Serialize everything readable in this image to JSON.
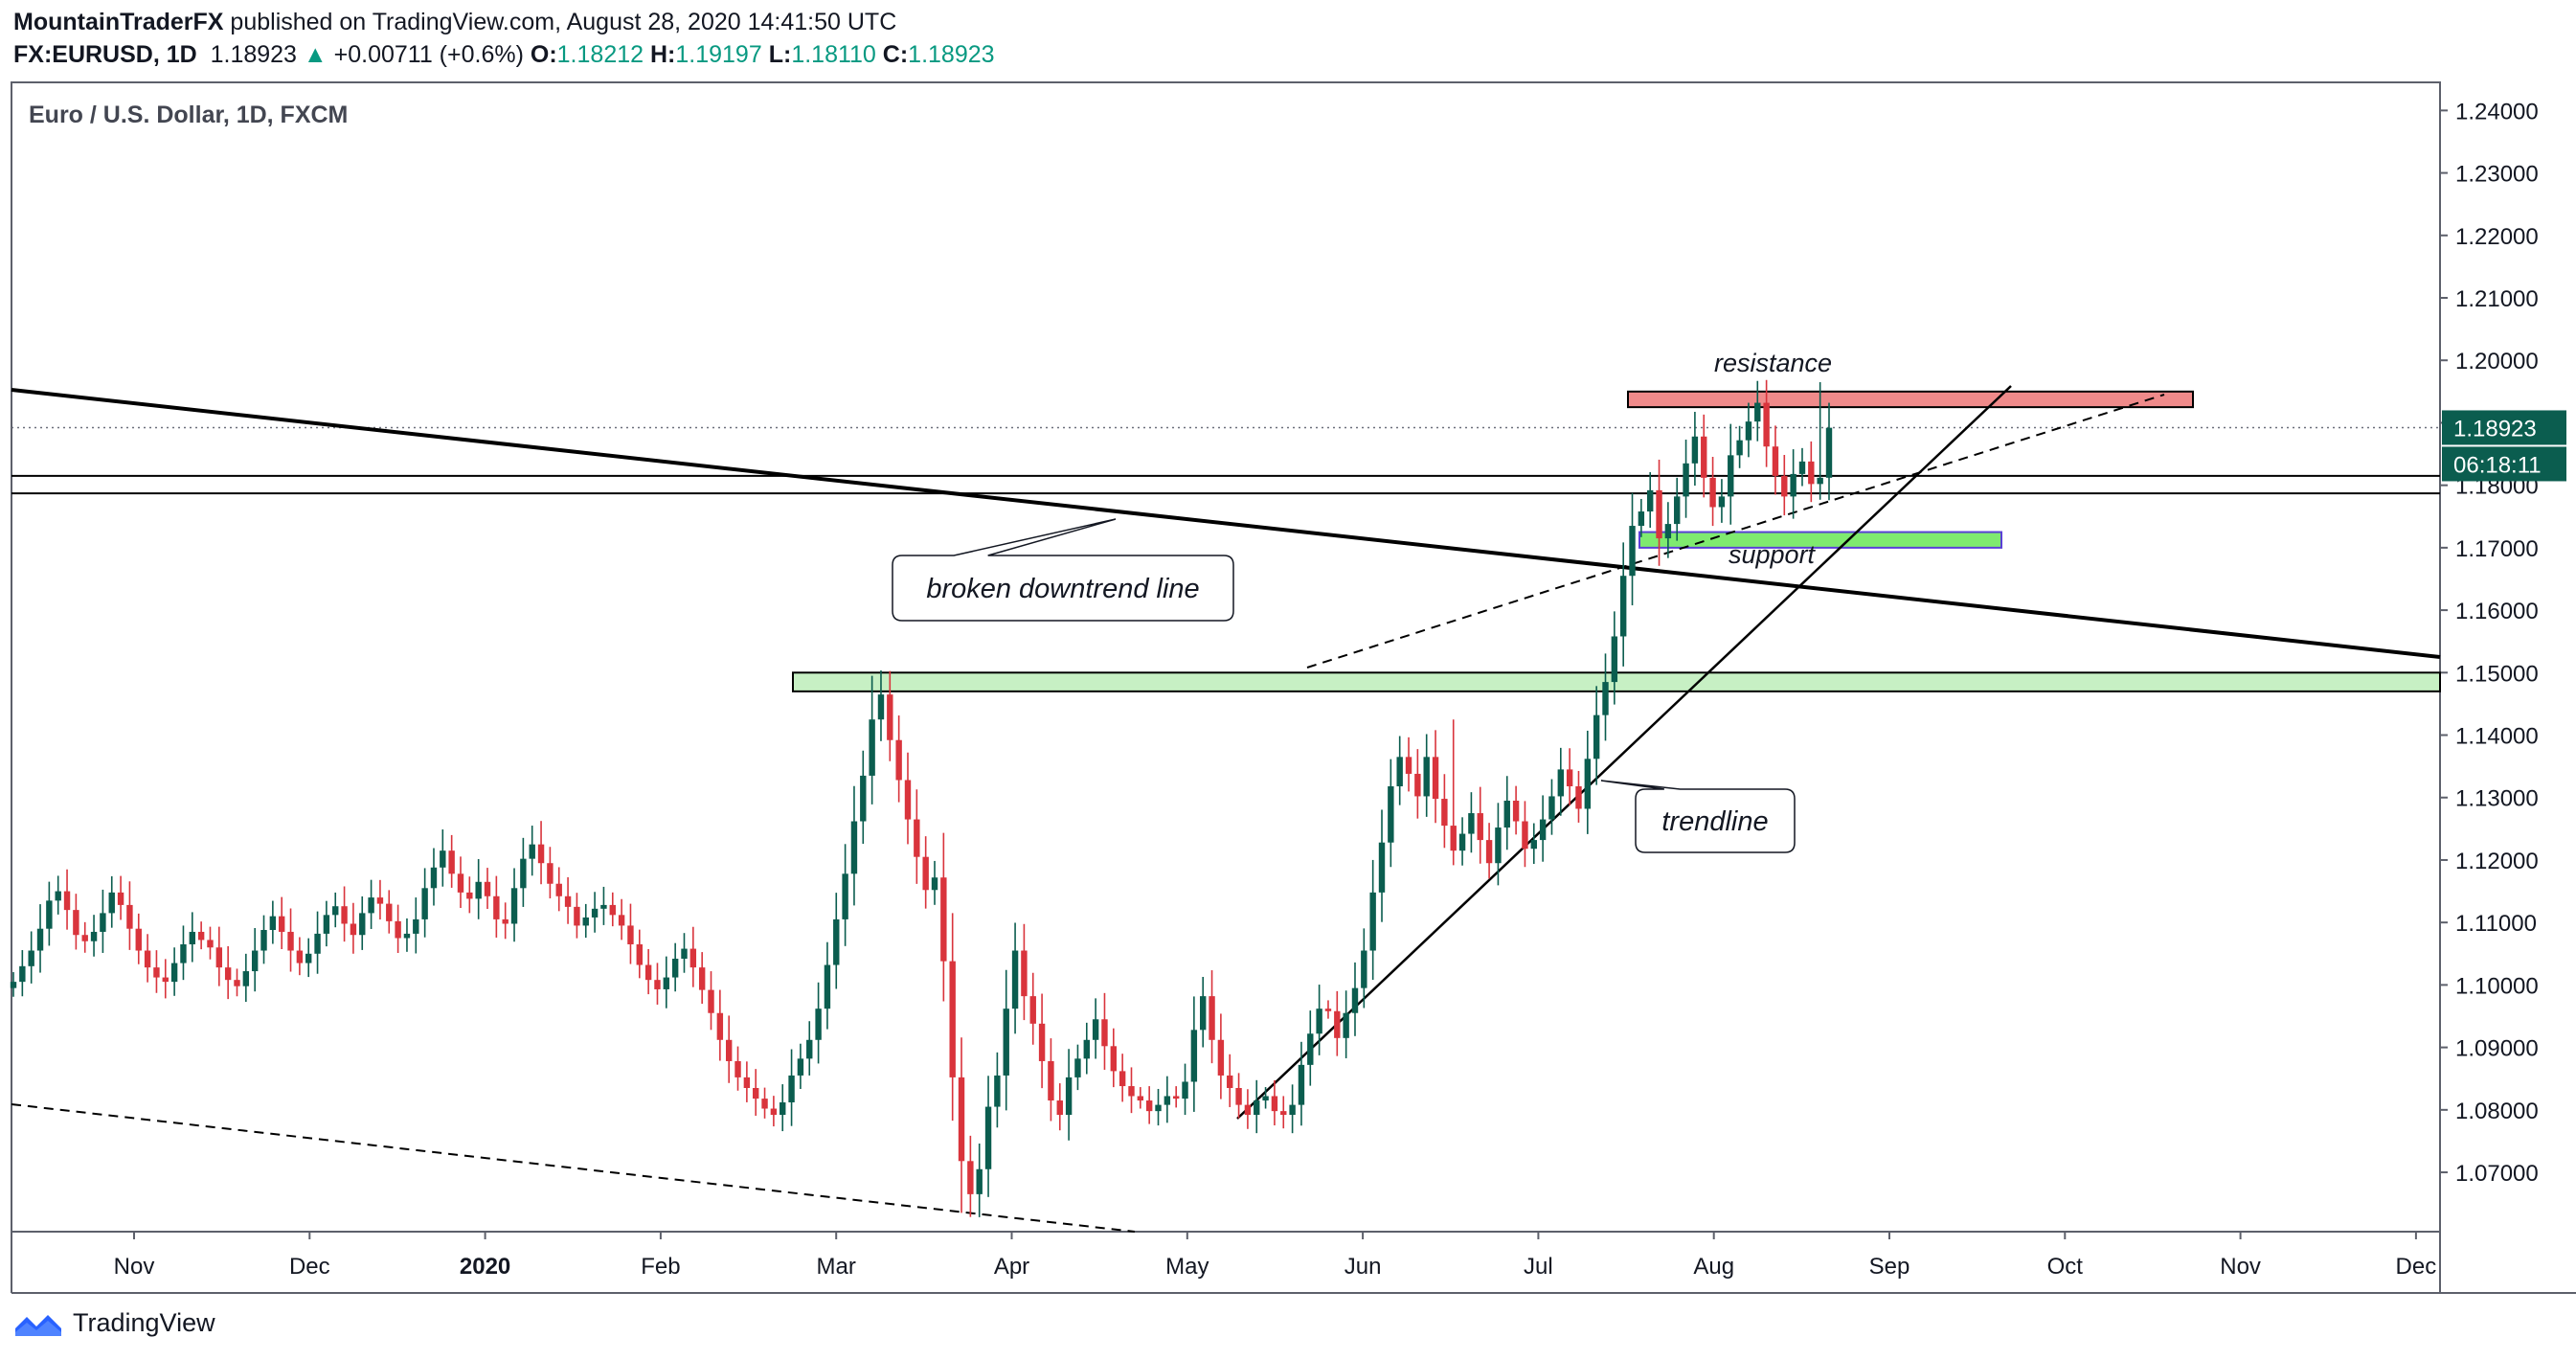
{
  "header": {
    "author": "MountainTraderFX",
    "published": "published on TradingView.com, August 28, 2020 14:41:50 UTC",
    "symbol": "FX:EURUSD, 1D",
    "last": "1.18923",
    "change": "+0.00711 (+0.6%)",
    "o_label": "O:",
    "o_value": "1.18212",
    "h_label": "H:",
    "h_value": "1.19197",
    "l_label": "L:",
    "l_value": "1.18110",
    "c_label": "C:",
    "c_value": "1.18923"
  },
  "colors": {
    "up": "#0b5d4f",
    "down": "#d9343c",
    "resistance_fill": "#ef8a8a",
    "support_fill": "#7fea6f",
    "zone_fill": "#c7f0c4",
    "price_label_bg": "#0b5d4f"
  },
  "chart_data": {
    "type": "candlestick",
    "title": "Euro / U.S. Dollar, 1D, FXCM",
    "ylim": [
      1.0605,
      1.2445
    ],
    "y_ticks": [
      "1.24000",
      "1.23000",
      "1.22000",
      "1.21000",
      "1.20000",
      "1.19000",
      "1.18000",
      "1.17000",
      "1.16000",
      "1.15000",
      "1.14000",
      "1.13000",
      "1.12000",
      "1.11000",
      "1.10000",
      "1.09000",
      "1.08000",
      "1.07000"
    ],
    "x_ticks": [
      {
        "label": "Nov",
        "bold": false
      },
      {
        "label": "Dec",
        "bold": false
      },
      {
        "label": "2020",
        "bold": true
      },
      {
        "label": "Feb",
        "bold": false
      },
      {
        "label": "Mar",
        "bold": false
      },
      {
        "label": "Apr",
        "bold": false
      },
      {
        "label": "May",
        "bold": false
      },
      {
        "label": "Jun",
        "bold": false
      },
      {
        "label": "Jul",
        "bold": false
      },
      {
        "label": "Aug",
        "bold": false
      },
      {
        "label": "Sep",
        "bold": false
      },
      {
        "label": "Oct",
        "bold": false
      },
      {
        "label": "Nov",
        "bold": false
      },
      {
        "label": "Dec",
        "bold": false
      }
    ],
    "last_price": "1.18923",
    "countdown": "06:18:11",
    "closes": [
      1.1005,
      1.103,
      1.1055,
      1.109,
      1.1135,
      1.115,
      1.112,
      1.108,
      1.107,
      1.1085,
      1.1115,
      1.1148,
      1.1128,
      1.109,
      1.1055,
      1.1028,
      1.1012,
      1.1005,
      1.1035,
      1.1065,
      1.1085,
      1.1072,
      1.106,
      1.1028,
      1.1008,
      1.0998,
      1.1022,
      1.1055,
      1.1088,
      1.111,
      1.1085,
      1.1055,
      1.1035,
      1.105,
      1.1082,
      1.1112,
      1.1126,
      1.1098,
      1.108,
      1.1115,
      1.114,
      1.113,
      1.1102,
      1.1075,
      1.1082,
      1.1105,
      1.1155,
      1.1188,
      1.1215,
      1.1178,
      1.1148,
      1.1138,
      1.1165,
      1.1142,
      1.1105,
      1.1098,
      1.1155,
      1.1202,
      1.1225,
      1.1195,
      1.1162,
      1.1142,
      1.1125,
      1.1095,
      1.1108,
      1.1122,
      1.1128,
      1.1112,
      1.1095,
      1.1065,
      1.1032,
      1.1008,
      1.0993,
      1.1012,
      1.1042,
      1.1058,
      1.1028,
      1.0992,
      1.0955,
      1.0912,
      1.0878,
      1.0852,
      1.0835,
      1.0818,
      1.0802,
      1.0792,
      1.0812,
      1.0855,
      1.0882,
      1.0912,
      1.0962,
      1.1032,
      1.1105,
      1.1178,
      1.1262,
      1.1335,
      1.1425,
      1.1465,
      1.1392,
      1.1328,
      1.1265,
      1.1205,
      1.1152,
      1.1172,
      1.1038,
      1.0852,
      1.0718,
      1.0665,
      1.0705,
      1.0805,
      1.0855,
      1.0962,
      1.1055,
      1.0982,
      1.0938,
      1.0878,
      1.0815,
      1.0792,
      1.0852,
      1.0882,
      1.0912,
      1.0945,
      1.0902,
      1.0862,
      1.0838,
      1.0822,
      1.0815,
      1.0798,
      1.0808,
      1.0822,
      1.0818,
      1.0845,
      1.0928,
      1.0982,
      1.0912,
      1.0855,
      1.0835,
      1.0808,
      1.0792,
      1.0815,
      1.0822,
      1.0798,
      1.0792,
      1.0808,
      1.0872,
      1.0922,
      1.0962,
      1.0958,
      1.0915,
      1.0955,
      1.0995,
      1.1055,
      1.1148,
      1.1228,
      1.1318,
      1.1365,
      1.1338,
      1.1302,
      1.1365,
      1.1298,
      1.1255,
      1.1215,
      1.1242,
      1.1275,
      1.1232,
      1.1195,
      1.1252,
      1.1295,
      1.1262,
      1.1218,
      1.1232,
      1.1265,
      1.1302,
      1.1345,
      1.1318,
      1.1282,
      1.1362,
      1.1432,
      1.1485,
      1.1558,
      1.1655,
      1.1735,
      1.1758,
      1.1792,
      1.1715,
      1.1738,
      1.1782,
      1.1835,
      1.1878,
      1.1812,
      1.1765,
      1.1782,
      1.1848,
      1.1872,
      1.1902,
      1.1932,
      1.1862,
      1.1815,
      1.1782,
      1.1818,
      1.1838,
      1.1802,
      1.1812,
      1.1892
    ],
    "annotations": [
      {
        "kind": "label",
        "text": "resistance"
      },
      {
        "kind": "label",
        "text": "support"
      },
      {
        "kind": "callout",
        "text": "broken downtrend line"
      },
      {
        "kind": "callout",
        "text": "trendline"
      }
    ]
  },
  "footer": {
    "brand": "TradingView"
  }
}
